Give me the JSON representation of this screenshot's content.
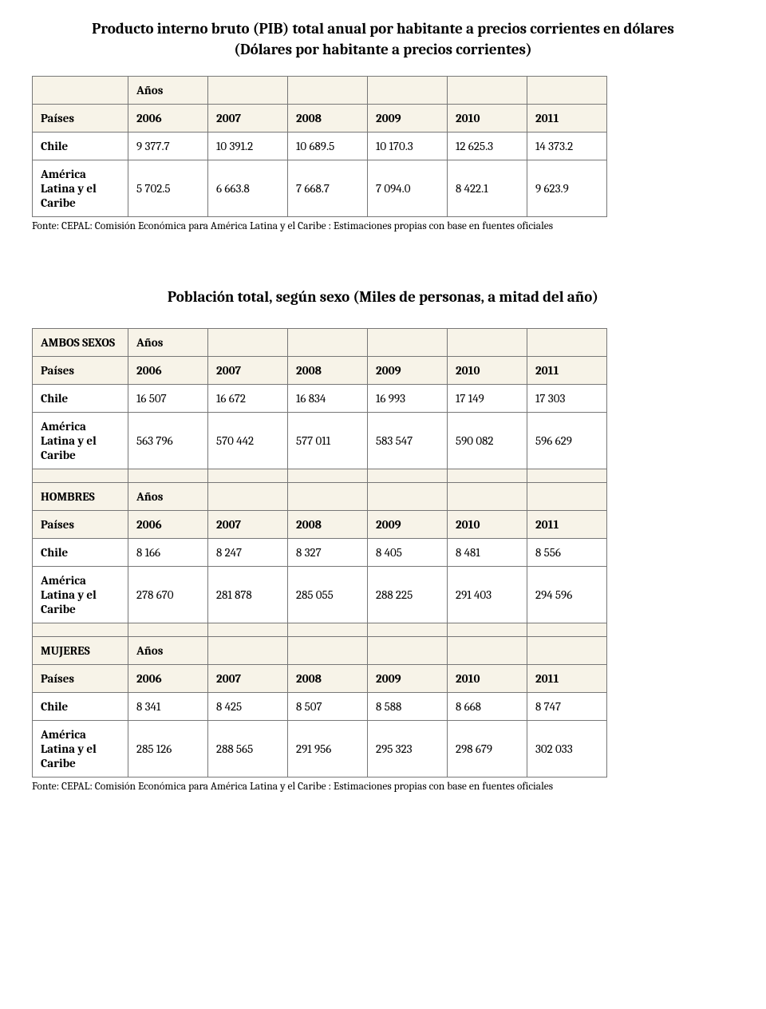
{
  "title1_line1": "Producto interno bruto (PIB) total anual por habitante a precios corrientes en dólares",
  "title1_line2": "(Dólares por habitante a precios corrientes)",
  "title2": "Población total, según sexo (Miles de personas, a mitad del año)",
  "source": "Fonte: CEPAL: Comisión Económica para América Latina y el Caribe : Estimaciones propias con base en fuentes oficiales",
  "labels": {
    "anos": "Años",
    "paises": "Países",
    "chile": "Chile",
    "alc1": "América Latina y el Caribe",
    "alc2": "América Latina y el Caribe",
    "ambos": "AMBOS SEXOS",
    "hombres": "HOMBRES",
    "mujeres": "MUJERES"
  },
  "years": [
    "2006",
    "2007",
    "2008",
    "2009",
    "2010",
    "2011"
  ],
  "pib": {
    "chile": [
      "9 377.7",
      "10 391.2",
      "10 689.5",
      "10 170.3",
      "12 625.3",
      "14 373.2"
    ],
    "alc": [
      "5 702.5",
      "6 663.8",
      "7 668.7",
      "7 094.0",
      "8 422.1",
      "9 623.9"
    ]
  },
  "ambos": {
    "chile": [
      "16 507",
      "16 672",
      "16 834",
      "16 993",
      "17 149",
      "17 303"
    ],
    "alc": [
      "563 796",
      "570 442",
      "577 011",
      "583 547",
      "590 082",
      "596 629"
    ]
  },
  "hombres": {
    "chile": [
      "8 166",
      "8 247",
      "8 327",
      "8 405",
      "8 481",
      "8 556"
    ],
    "alc": [
      "278 670",
      "281 878",
      "285 055",
      "288 225",
      "291 403",
      "294 596"
    ]
  },
  "mujeres": {
    "chile": [
      "8 341",
      "8 425",
      "8 507",
      "8 588",
      "8 668",
      "8 747"
    ],
    "alc": [
      "285 126",
      "288 565",
      "291 956",
      "295 323",
      "298 679",
      "302 033"
    ]
  }
}
